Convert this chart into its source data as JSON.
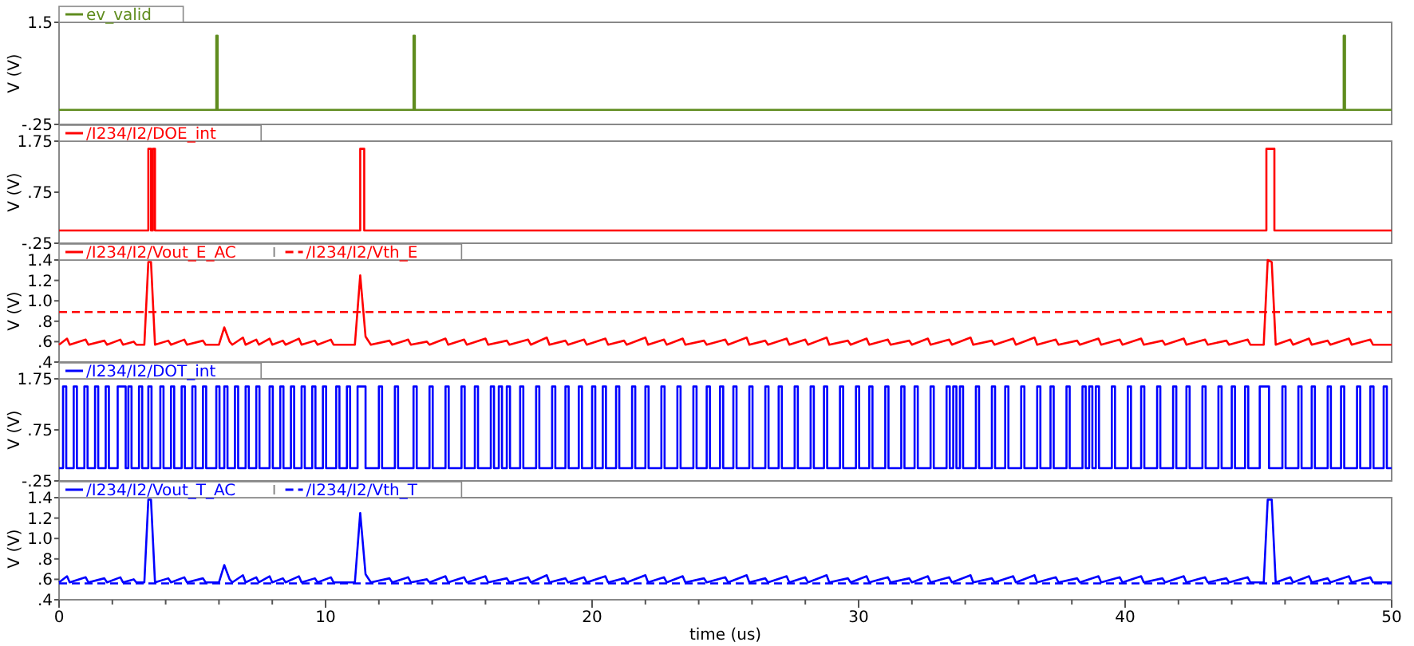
{
  "chart_data": [
    {
      "type": "step",
      "xlim": [
        0,
        50
      ],
      "ylim": [
        -0.25,
        1.5
      ],
      "yticks": [
        1.5,
        {
          "value": -0.25,
          "label": "-.25"
        }
      ],
      "ylabel": "V (V)",
      "tick_labels": "y",
      "legend": "top left",
      "series": [
        {
          "name": "ev_valid",
          "color": "#5f8c1e",
          "x": [
            0,
            5.9,
            5.95,
            13.3,
            13.35,
            48.2,
            48.25,
            50
          ],
          "values": [
            0,
            1.27,
            0,
            1.27,
            0,
            1.27,
            0,
            0
          ]
        }
      ]
    },
    {
      "type": "step",
      "xlim": [
        0,
        50
      ],
      "ylim": [
        -0.25,
        1.75
      ],
      "yticks": [
        1.75,
        {
          "value": 0.75,
          "label": ".75"
        },
        {
          "value": -0.25,
          "label": "-.25"
        }
      ],
      "ylabel": "V (V)",
      "tick_labels": "y",
      "legend": "top left",
      "series": [
        {
          "name": "/I234/I2/DOE_int",
          "color": "#ff0000",
          "x": [
            0,
            3.35,
            3.45,
            3.52,
            3.6,
            11.3,
            11.45,
            45.3,
            45.6,
            50
          ],
          "values": [
            0,
            1.6,
            0,
            1.6,
            0,
            1.6,
            0,
            1.6,
            0,
            0
          ]
        }
      ]
    },
    {
      "type": "line",
      "xlim": [
        0,
        50
      ],
      "ylim": [
        0.4,
        1.4
      ],
      "yticks": [
        1.4,
        1.2,
        {
          "value": 1.0,
          "label": "1.0"
        },
        {
          "value": 0.8,
          "label": ".8"
        },
        {
          "value": 0.6,
          "label": ".6"
        },
        {
          "value": 0.4,
          "label": ".4"
        }
      ],
      "ylabel": "V (V)",
      "tick_labels": "y",
      "legend": "top left",
      "series": [
        {
          "name": "/I234/I2/Vout_E_AC",
          "color": "#ff0000",
          "x": [
            0,
            0.3,
            0.4,
            1.0,
            1.1,
            1.7,
            1.8,
            2.3,
            2.4,
            2.8,
            2.9,
            3.2,
            3.35,
            3.45,
            3.6,
            4.1,
            4.2,
            4.7,
            4.8,
            5.4,
            5.5,
            6.0,
            6.2,
            6.4,
            6.5,
            6.9,
            7.0,
            7.4,
            7.5,
            7.9,
            8.0,
            8.4,
            8.5,
            9.0,
            9.1,
            9.6,
            9.7,
            10.2,
            10.3,
            11.1,
            11.3,
            11.5,
            11.7,
            12.4,
            12.5,
            13.1,
            13.2,
            13.8,
            13.9,
            14.5,
            14.6,
            15.2,
            15.3,
            16.0,
            16.1,
            16.8,
            16.9,
            17.6,
            17.7,
            18.3,
            18.4,
            19.0,
            19.1,
            19.7,
            19.8,
            20.5,
            20.6,
            21.2,
            21.3,
            22.0,
            22.1,
            22.7,
            22.8,
            23.4,
            23.5,
            24.2,
            24.3,
            25.0,
            25.1,
            25.8,
            25.9,
            26.5,
            26.6,
            27.3,
            27.4,
            28.0,
            28.1,
            28.8,
            28.9,
            29.6,
            29.7,
            30.3,
            30.4,
            31.1,
            31.2,
            31.9,
            32.0,
            32.6,
            32.7,
            33.4,
            33.5,
            34.2,
            34.3,
            35.0,
            35.1,
            35.8,
            35.9,
            36.6,
            36.7,
            37.4,
            37.5,
            38.2,
            38.3,
            39.0,
            39.1,
            39.8,
            39.9,
            40.6,
            40.7,
            41.4,
            41.5,
            42.2,
            42.3,
            43.0,
            43.1,
            43.8,
            43.9,
            44.6,
            44.7,
            45.2,
            45.35,
            45.5,
            45.65,
            46.2,
            46.3,
            46.9,
            47.0,
            47.6,
            47.7,
            48.4,
            48.5,
            49.2,
            49.3,
            50
          ],
          "values": [
            0.57,
            0.63,
            0.57,
            0.62,
            0.57,
            0.61,
            0.57,
            0.62,
            0.57,
            0.6,
            0.57,
            0.57,
            1.38,
            1.38,
            0.57,
            0.61,
            0.57,
            0.62,
            0.57,
            0.61,
            0.57,
            0.57,
            0.74,
            0.6,
            0.57,
            0.64,
            0.57,
            0.62,
            0.57,
            0.63,
            0.57,
            0.61,
            0.57,
            0.63,
            0.57,
            0.61,
            0.57,
            0.62,
            0.57,
            0.57,
            1.25,
            0.65,
            0.57,
            0.61,
            0.57,
            0.62,
            0.57,
            0.6,
            0.57,
            0.63,
            0.57,
            0.62,
            0.57,
            0.63,
            0.57,
            0.61,
            0.57,
            0.62,
            0.57,
            0.64,
            0.57,
            0.61,
            0.57,
            0.62,
            0.57,
            0.63,
            0.57,
            0.61,
            0.57,
            0.64,
            0.57,
            0.62,
            0.57,
            0.63,
            0.57,
            0.61,
            0.57,
            0.62,
            0.57,
            0.64,
            0.57,
            0.61,
            0.57,
            0.63,
            0.57,
            0.62,
            0.57,
            0.64,
            0.57,
            0.61,
            0.57,
            0.63,
            0.57,
            0.62,
            0.57,
            0.61,
            0.57,
            0.63,
            0.57,
            0.62,
            0.57,
            0.64,
            0.57,
            0.61,
            0.57,
            0.63,
            0.57,
            0.64,
            0.57,
            0.62,
            0.57,
            0.61,
            0.57,
            0.63,
            0.57,
            0.62,
            0.57,
            0.63,
            0.57,
            0.61,
            0.57,
            0.63,
            0.57,
            0.62,
            0.57,
            0.61,
            0.57,
            0.62,
            0.57,
            0.57,
            1.4,
            1.38,
            0.57,
            0.62,
            0.57,
            0.63,
            0.57,
            0.61,
            0.57,
            0.63,
            0.57,
            0.62,
            0.57,
            0.57
          ]
        },
        {
          "name": "/I234/I2/Vth_E",
          "color": "#ff0000",
          "line_style": "dashed",
          "x": [
            0,
            50
          ],
          "values": [
            0.89,
            0.89
          ]
        }
      ]
    },
    {
      "type": "step",
      "xlim": [
        0,
        50
      ],
      "ylim": [
        -0.25,
        1.75
      ],
      "yticks": [
        1.75,
        {
          "value": 0.75,
          "label": ".75"
        },
        {
          "value": -0.25,
          "label": "-.25"
        }
      ],
      "ylabel": "V (V)",
      "tick_labels": "y",
      "legend": "top left",
      "series": [
        {
          "name": "/I234/I2/DOT_int",
          "color": "#0000ff",
          "x": [
            0,
            0.15,
            0.27,
            0.55,
            0.67,
            0.95,
            1.07,
            1.35,
            1.47,
            1.75,
            1.87,
            2.2,
            2.5,
            2.6,
            2.72,
            3.0,
            3.12,
            3.35,
            3.47,
            3.8,
            3.92,
            4.2,
            4.32,
            4.6,
            4.72,
            5.0,
            5.12,
            5.4,
            5.52,
            5.9,
            6.02,
            6.2,
            6.32,
            6.6,
            6.72,
            7.0,
            7.12,
            7.4,
            7.52,
            7.9,
            8.02,
            8.3,
            8.42,
            8.7,
            8.82,
            9.1,
            9.22,
            9.5,
            9.62,
            9.9,
            10.02,
            10.4,
            10.52,
            10.8,
            10.92,
            11.2,
            11.5,
            12.0,
            12.12,
            12.6,
            12.72,
            13.3,
            13.42,
            13.9,
            14.02,
            14.5,
            14.62,
            15.1,
            15.22,
            15.6,
            15.72,
            16.2,
            16.32,
            16.5,
            16.62,
            16.8,
            16.92,
            17.3,
            17.42,
            17.9,
            18.02,
            18.5,
            18.62,
            19.0,
            19.12,
            19.5,
            19.62,
            20.0,
            20.12,
            20.4,
            20.52,
            20.9,
            21.02,
            21.5,
            21.62,
            22.0,
            22.12,
            22.6,
            22.72,
            23.2,
            23.32,
            23.8,
            23.92,
            24.3,
            24.42,
            24.8,
            24.92,
            25.3,
            25.42,
            25.9,
            26.02,
            26.5,
            26.62,
            27.0,
            27.12,
            27.6,
            27.72,
            28.2,
            28.32,
            28.7,
            28.82,
            29.3,
            29.42,
            29.9,
            30.02,
            30.4,
            30.52,
            31.0,
            31.12,
            31.6,
            31.72,
            32.1,
            32.22,
            32.7,
            32.82,
            33.3,
            33.42,
            33.55,
            33.67,
            33.8,
            33.92,
            34.4,
            34.52,
            35.0,
            35.12,
            35.5,
            35.62,
            36.1,
            36.22,
            36.7,
            36.82,
            37.2,
            37.32,
            37.8,
            37.92,
            38.4,
            38.52,
            38.65,
            38.77,
            38.9,
            39.02,
            39.5,
            39.62,
            40.1,
            40.22,
            40.6,
            40.72,
            41.2,
            41.32,
            41.8,
            41.92,
            42.3,
            42.42,
            42.9,
            43.02,
            43.5,
            43.62,
            44.0,
            44.12,
            44.5,
            44.62,
            45.05,
            45.4,
            45.9,
            46.02,
            46.5,
            46.62,
            47.0,
            47.12,
            47.6,
            47.72,
            48.1,
            48.22,
            48.7,
            48.82,
            49.2,
            49.32,
            49.7,
            49.82,
            50
          ],
          "values": [
            0,
            1.6,
            0,
            1.6,
            0,
            1.6,
            0,
            1.6,
            0,
            1.6,
            0,
            1.6,
            0,
            1.6,
            0,
            1.6,
            0,
            1.6,
            0,
            1.6,
            0,
            1.6,
            0,
            1.6,
            0,
            1.6,
            0,
            1.6,
            0,
            1.6,
            0,
            1.6,
            0,
            1.6,
            0,
            1.6,
            0,
            1.6,
            0,
            1.6,
            0,
            1.6,
            0,
            1.6,
            0,
            1.6,
            0,
            1.6,
            0,
            1.6,
            0,
            1.6,
            0,
            1.6,
            0,
            1.6,
            0,
            1.6,
            0,
            1.6,
            0,
            1.6,
            0,
            1.6,
            0,
            1.6,
            0,
            1.6,
            0,
            1.6,
            0,
            1.6,
            0,
            1.6,
            0,
            1.6,
            0,
            1.6,
            0,
            1.6,
            0,
            1.6,
            0,
            1.6,
            0,
            1.6,
            0,
            1.6,
            0,
            1.6,
            0,
            1.6,
            0,
            1.6,
            0,
            1.6,
            0,
            1.6,
            0,
            1.6,
            0,
            1.6,
            0,
            1.6,
            0,
            1.6,
            0,
            1.6,
            0,
            1.6,
            0,
            1.6,
            0,
            1.6,
            0,
            1.6,
            0,
            1.6,
            0,
            1.6,
            0,
            1.6,
            0,
            1.6,
            0,
            1.6,
            0,
            1.6,
            0,
            1.6,
            0,
            1.6,
            0,
            1.6,
            0,
            1.6,
            0,
            1.6,
            0,
            1.6,
            0,
            1.6,
            0,
            1.6,
            0,
            1.6,
            0,
            1.6,
            0,
            1.6,
            0,
            1.6,
            0,
            1.6,
            0,
            1.6,
            0,
            1.6,
            0,
            1.6,
            0,
            1.6,
            0,
            1.6,
            0,
            1.6,
            0,
            1.6,
            0,
            1.6,
            0,
            1.6,
            0,
            1.6,
            0,
            1.6,
            0,
            1.6,
            0,
            1.6,
            0,
            1.6,
            0,
            1.6,
            0,
            1.6,
            0,
            1.6,
            0,
            1.6,
            0,
            1.6,
            0,
            1.6,
            0,
            1.6,
            0,
            1.6,
            0,
            0
          ]
        }
      ]
    },
    {
      "type": "line",
      "xlim": [
        0,
        50
      ],
      "ylim": [
        0.4,
        1.4
      ],
      "yticks": [
        1.4,
        1.2,
        {
          "value": 1.0,
          "label": "1.0"
        },
        {
          "value": 0.8,
          "label": ".8"
        },
        {
          "value": 0.6,
          "label": ".6"
        },
        {
          "value": 0.4,
          "label": ".4"
        }
      ],
      "xticks": [
        0,
        {
          "value": 2,
          "label": null
        },
        {
          "value": 4,
          "label": null
        },
        {
          "value": 6,
          "label": null
        },
        {
          "value": 8,
          "label": null
        },
        10,
        {
          "value": 12,
          "label": null
        },
        {
          "value": 14,
          "label": null
        },
        {
          "value": 16,
          "label": null
        },
        {
          "value": 18,
          "label": null
        },
        20,
        {
          "value": 22,
          "label": null
        },
        {
          "value": 24,
          "label": null
        },
        {
          "value": 26,
          "label": null
        },
        {
          "value": 28,
          "label": null
        },
        30,
        {
          "value": 32,
          "label": null
        },
        {
          "value": 34,
          "label": null
        },
        {
          "value": 36,
          "label": null
        },
        {
          "value": 38,
          "label": null
        },
        40,
        {
          "value": 42,
          "label": null
        },
        {
          "value": 44,
          "label": null
        },
        {
          "value": 46,
          "label": null
        },
        {
          "value": 48,
          "label": null
        },
        50
      ],
      "ylabel": "V (V)",
      "xlabel": "time (us)",
      "legend": "top left",
      "series": [
        {
          "name": "/I234/I2/Vout_T_AC",
          "color": "#0000ff",
          "x": [
            0,
            0.3,
            0.4,
            1.0,
            1.1,
            1.7,
            1.8,
            2.3,
            2.4,
            2.8,
            2.9,
            3.2,
            3.35,
            3.45,
            3.6,
            4.1,
            4.2,
            4.7,
            4.8,
            5.4,
            5.5,
            6.0,
            6.2,
            6.4,
            6.5,
            6.9,
            7.0,
            7.4,
            7.5,
            7.9,
            8.0,
            8.4,
            8.5,
            9.0,
            9.1,
            9.6,
            9.7,
            10.2,
            10.3,
            11.1,
            11.3,
            11.5,
            11.7,
            12.4,
            12.5,
            13.1,
            13.2,
            13.8,
            13.9,
            14.5,
            14.6,
            15.2,
            15.3,
            16.0,
            16.1,
            16.8,
            16.9,
            17.6,
            17.7,
            18.3,
            18.4,
            19.0,
            19.1,
            19.7,
            19.8,
            20.5,
            20.6,
            21.2,
            21.3,
            22.0,
            22.1,
            22.7,
            22.8,
            23.4,
            23.5,
            24.2,
            24.3,
            25.0,
            25.1,
            25.8,
            25.9,
            26.5,
            26.6,
            27.3,
            27.4,
            28.0,
            28.1,
            28.8,
            28.9,
            29.6,
            29.7,
            30.3,
            30.4,
            31.1,
            31.2,
            31.9,
            32.0,
            32.6,
            32.7,
            33.4,
            33.5,
            34.2,
            34.3,
            35.0,
            35.1,
            35.8,
            35.9,
            36.6,
            36.7,
            37.4,
            37.5,
            38.2,
            38.3,
            39.0,
            39.1,
            39.8,
            39.9,
            40.6,
            40.7,
            41.4,
            41.5,
            42.2,
            42.3,
            43.0,
            43.1,
            43.8,
            43.9,
            44.6,
            44.7,
            45.2,
            45.35,
            45.5,
            45.65,
            46.2,
            46.3,
            46.9,
            47.0,
            47.6,
            47.7,
            48.4,
            48.5,
            49.2,
            49.3,
            50
          ],
          "values": [
            0.57,
            0.63,
            0.57,
            0.62,
            0.57,
            0.61,
            0.57,
            0.62,
            0.57,
            0.6,
            0.57,
            0.57,
            1.38,
            1.38,
            0.57,
            0.61,
            0.57,
            0.62,
            0.57,
            0.61,
            0.57,
            0.57,
            0.74,
            0.6,
            0.57,
            0.64,
            0.57,
            0.62,
            0.57,
            0.63,
            0.57,
            0.61,
            0.57,
            0.63,
            0.57,
            0.61,
            0.57,
            0.62,
            0.57,
            0.57,
            1.25,
            0.65,
            0.57,
            0.61,
            0.57,
            0.62,
            0.57,
            0.6,
            0.57,
            0.63,
            0.57,
            0.62,
            0.57,
            0.63,
            0.57,
            0.61,
            0.57,
            0.62,
            0.57,
            0.64,
            0.57,
            0.61,
            0.57,
            0.62,
            0.57,
            0.63,
            0.57,
            0.61,
            0.57,
            0.64,
            0.57,
            0.62,
            0.57,
            0.63,
            0.57,
            0.61,
            0.57,
            0.62,
            0.57,
            0.64,
            0.57,
            0.61,
            0.57,
            0.63,
            0.57,
            0.62,
            0.57,
            0.64,
            0.57,
            0.61,
            0.57,
            0.63,
            0.57,
            0.62,
            0.57,
            0.61,
            0.57,
            0.63,
            0.57,
            0.62,
            0.57,
            0.64,
            0.57,
            0.61,
            0.57,
            0.63,
            0.57,
            0.64,
            0.57,
            0.62,
            0.57,
            0.61,
            0.57,
            0.63,
            0.57,
            0.62,
            0.57,
            0.63,
            0.57,
            0.61,
            0.57,
            0.63,
            0.57,
            0.62,
            0.57,
            0.61,
            0.57,
            0.62,
            0.57,
            0.57,
            1.38,
            1.38,
            0.57,
            0.62,
            0.57,
            0.63,
            0.57,
            0.61,
            0.57,
            0.63,
            0.57,
            0.62,
            0.57,
            0.57
          ]
        },
        {
          "name": "/I234/I2/Vth_T",
          "color": "#0000ff",
          "line_style": "dashed",
          "x": [
            0,
            50
          ],
          "values": [
            0.56,
            0.56
          ]
        }
      ]
    }
  ]
}
